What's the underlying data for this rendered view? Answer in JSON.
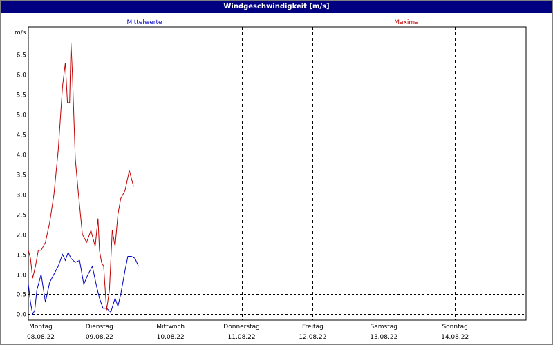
{
  "window": {
    "title": "Windgeschwindigkeit [m/s]"
  },
  "colors": {
    "mean": "#0000c0",
    "max": "#c00000",
    "grid": "#000000",
    "titlebar": "#000080"
  },
  "chart_data": {
    "type": "line",
    "title": "Windgeschwindigkeit [m/s]",
    "ylabel": "m/s",
    "ylim": [
      -0.15,
      7.2
    ],
    "yticks": [
      "0,0",
      "0,5",
      "1,0",
      "1,5",
      "2,0",
      "2,5",
      "3,0",
      "3,5",
      "4,0",
      "4,5",
      "5,0",
      "5,5",
      "6,0",
      "6,5"
    ],
    "ytick_values": [
      0,
      0.5,
      1,
      1.5,
      2,
      2.5,
      3,
      3.5,
      4,
      4.5,
      5,
      5.5,
      6,
      6.5
    ],
    "xlim": [
      0,
      7
    ],
    "grid": true,
    "days": [
      {
        "name": "Montag",
        "date": "08.08.22"
      },
      {
        "name": "Dienstag",
        "date": "09.08.22"
      },
      {
        "name": "Mittwoch",
        "date": "10.08.22"
      },
      {
        "name": "Donnerstag",
        "date": "11.08.22"
      },
      {
        "name": "Freitag",
        "date": "12.08.22"
      },
      {
        "name": "Samstag",
        "date": "13.08.22"
      },
      {
        "name": "Sonntag",
        "date": "14.08.22"
      }
    ],
    "series": [
      {
        "name": "Mittelwerte",
        "color": "#0000c0",
        "x": [
          0,
          0.03,
          0.06,
          0.09,
          0.12,
          0.18,
          0.24,
          0.3,
          0.36,
          0.42,
          0.48,
          0.52,
          0.56,
          0.6,
          0.66,
          0.72,
          0.78,
          0.84,
          0.9,
          0.96,
          1.0,
          1.05,
          1.1,
          1.16,
          1.22,
          1.26,
          1.3,
          1.36,
          1.4,
          1.45,
          1.5,
          1.55,
          1.6,
          1.65,
          1.7,
          1.76
        ],
        "y": [
          0.75,
          0.3,
          0.0,
          0.1,
          0.6,
          1.0,
          0.3,
          0.8,
          1.0,
          1.2,
          1.5,
          1.35,
          1.55,
          1.4,
          1.3,
          1.35,
          0.75,
          1.0,
          1.2,
          0.7,
          0.4,
          0.15,
          0.15,
          0.05,
          0.4,
          0.2,
          0.5,
          1.1,
          1.45,
          1.45,
          1.4,
          1.2,
          null,
          null,
          null,
          null
        ]
      },
      {
        "name": "Maxima",
        "color": "#c00000",
        "x": [
          0,
          0.03,
          0.06,
          0.1,
          0.14,
          0.18,
          0.24,
          0.3,
          0.36,
          0.42,
          0.48,
          0.52,
          0.55,
          0.58,
          0.6,
          0.62,
          0.66,
          0.7,
          0.76,
          0.82,
          0.88,
          0.94,
          0.98,
          1.0,
          1.03,
          1.06,
          1.1,
          1.14,
          1.18,
          1.22,
          1.26,
          1.3,
          1.36,
          1.42,
          1.48,
          1.52,
          1.56,
          1.6,
          1.64
        ],
        "y": [
          1.6,
          1.4,
          0.9,
          1.2,
          1.6,
          1.6,
          1.8,
          2.3,
          3.0,
          4.1,
          5.7,
          6.3,
          5.3,
          5.3,
          6.8,
          6.0,
          3.9,
          3.1,
          2.0,
          1.8,
          2.1,
          1.7,
          2.4,
          1.6,
          1.3,
          1.2,
          0.1,
          0.6,
          2.1,
          1.7,
          2.5,
          2.9,
          3.1,
          3.6,
          3.2,
          null,
          null,
          null,
          null
        ]
      }
    ],
    "legend": [
      "Mittelwerte",
      "Maxima"
    ]
  }
}
